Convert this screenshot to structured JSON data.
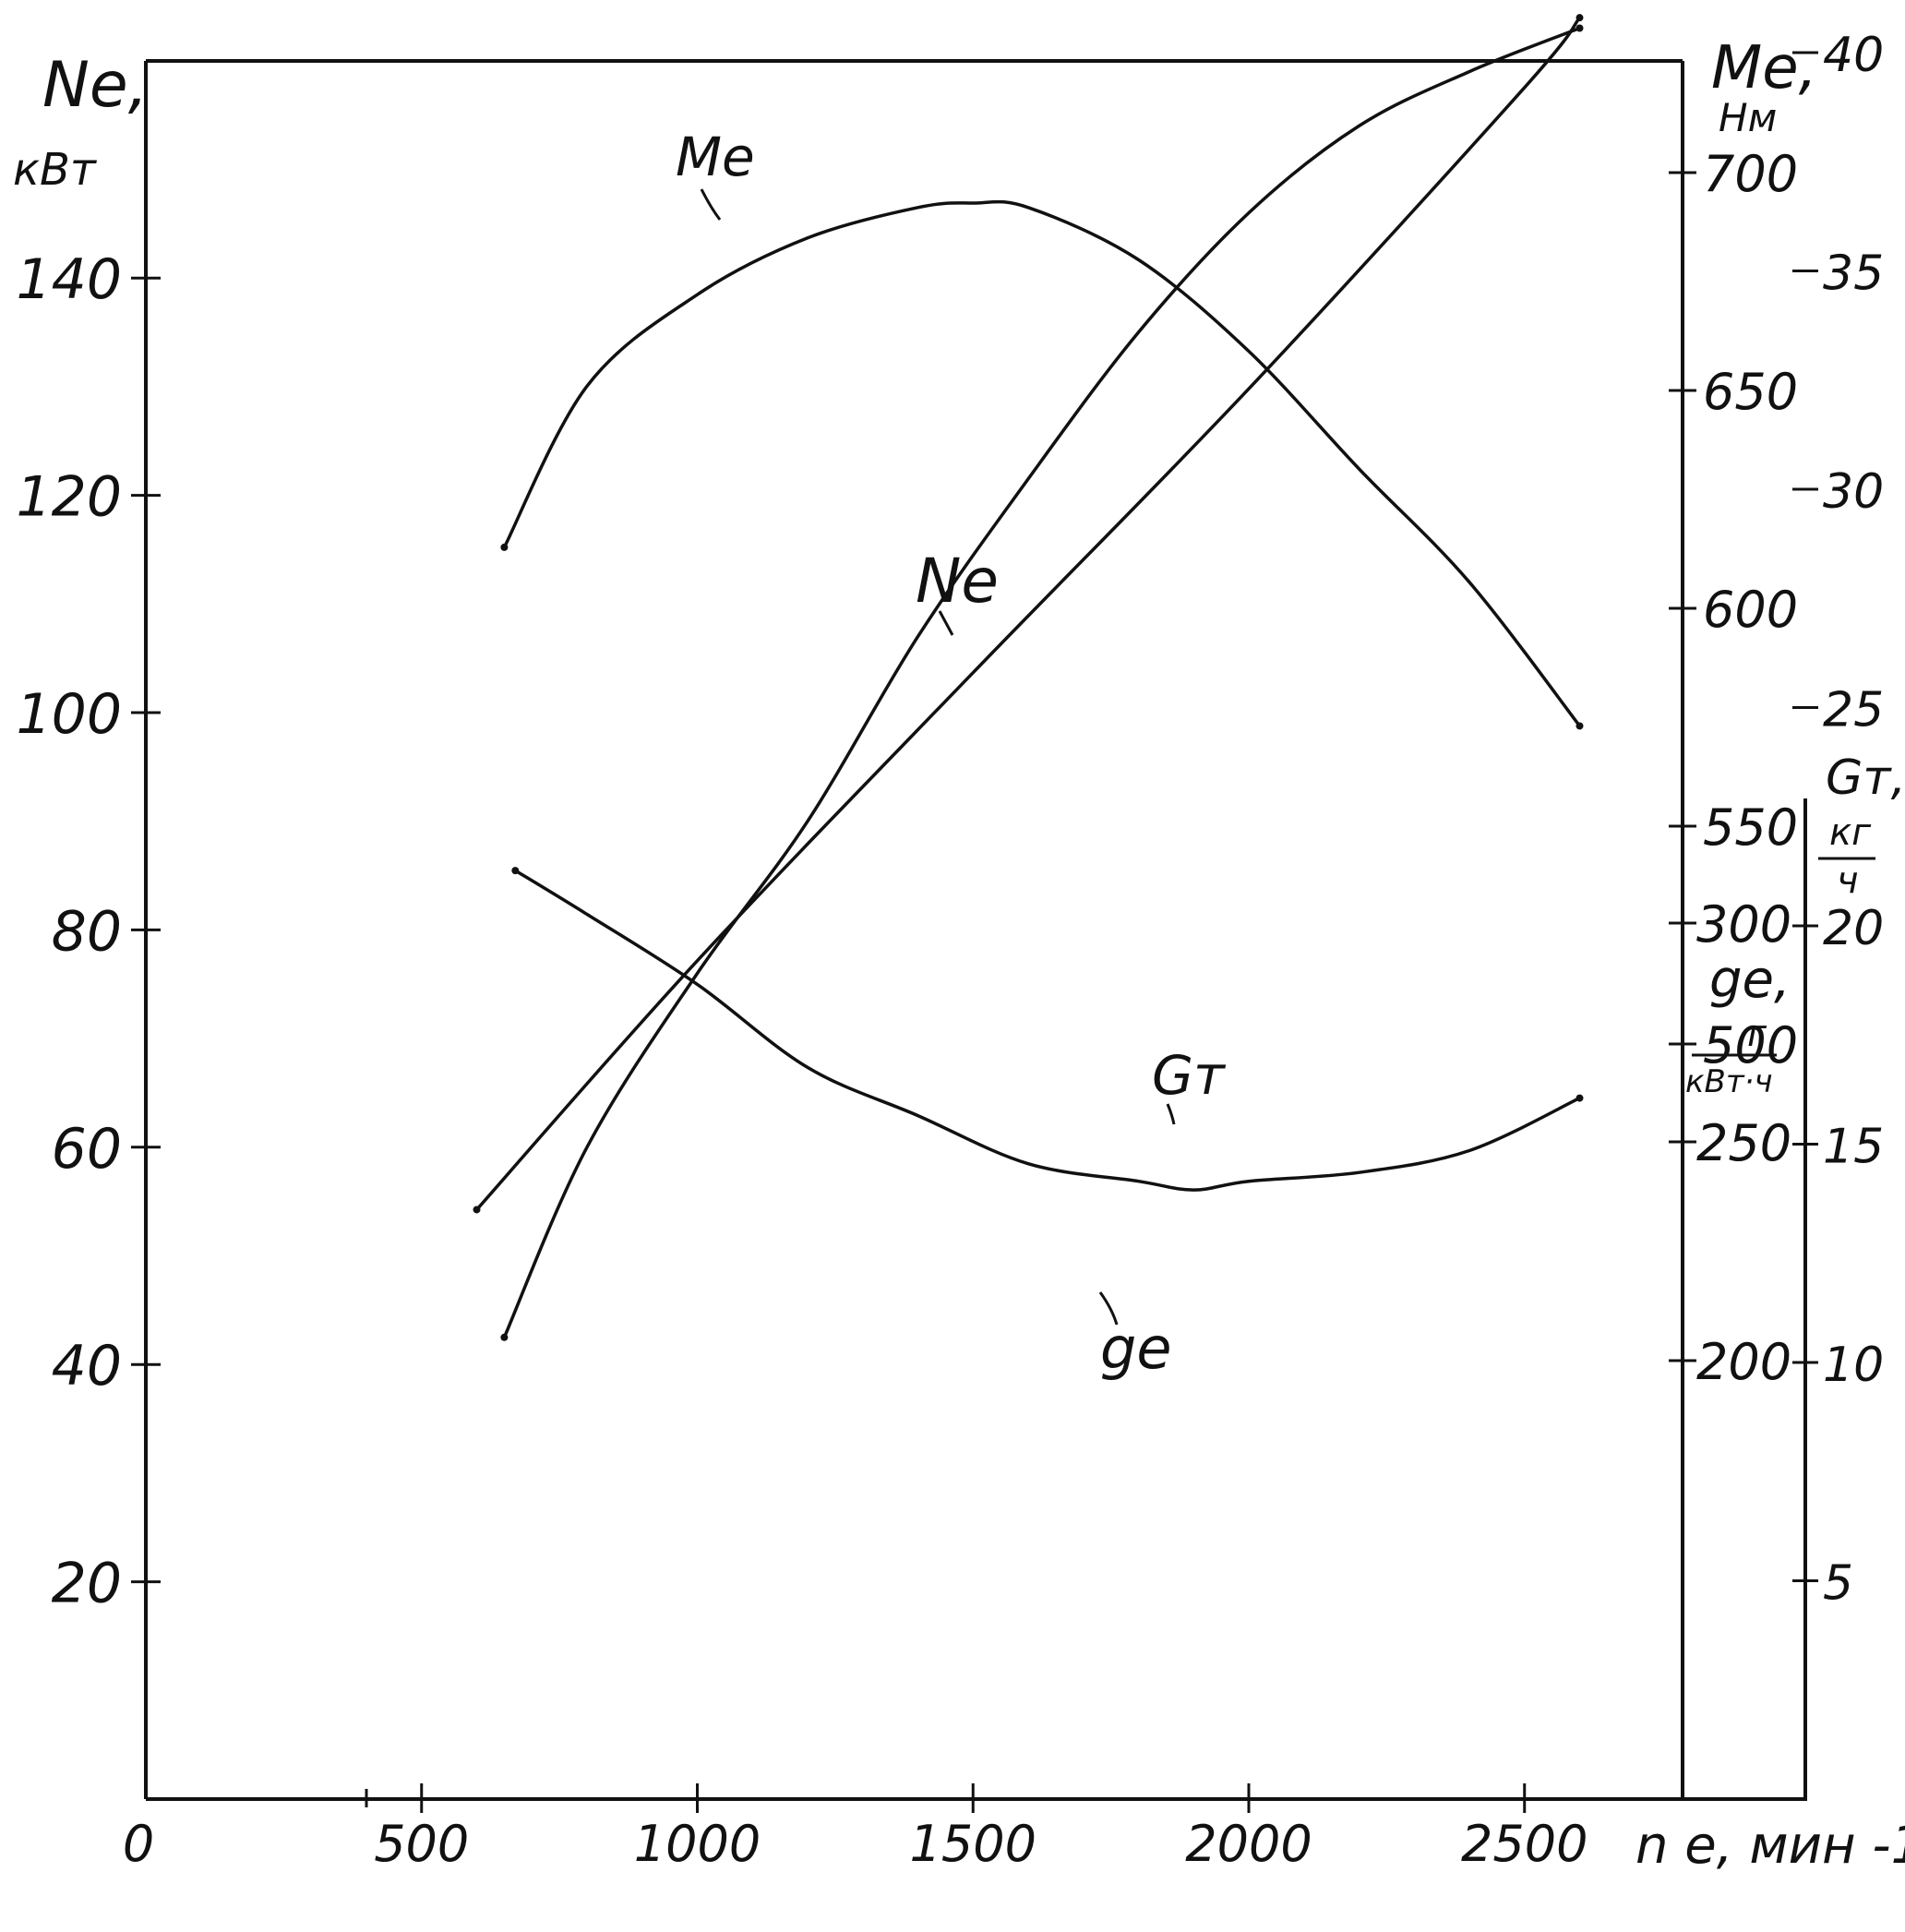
{
  "chart_data": {
    "type": "line",
    "title": "",
    "xlabel": "n e, мин -1",
    "x_ticks": [
      "0",
      "500",
      "1000",
      "1500",
      "2000",
      "2500"
    ],
    "xlim": [
      0,
      2800
    ],
    "axes": {
      "left": {
        "label_main": "Ne,",
        "label_unit": "кВт",
        "ticks": [
          "20",
          "40",
          "60",
          "80",
          "100",
          "120",
          "140"
        ],
        "ylim": [
          0,
          160
        ]
      },
      "right1": {
        "label_main": "Me,",
        "label_unit": "Нм",
        "ticks": [
          "500",
          "550",
          "600",
          "650",
          "700"
        ]
      },
      "right2": {
        "label_main": "ge,",
        "label_num": "г",
        "label_den": "кВт·ч",
        "ticks": [
          "200",
          "250",
          "300"
        ]
      },
      "right3": {
        "label_main": "Gт,",
        "label_num": "кг",
        "label_den": "ч",
        "ticks": [
          "5",
          "10",
          "15",
          "20",
          "25",
          "30",
          "35",
          "40"
        ]
      }
    },
    "series": [
      {
        "name": "Me",
        "axis": "right1",
        "x": [
          650,
          800,
          1000,
          1200,
          1400,
          1500,
          1600,
          1800,
          2000,
          2200,
          2400,
          2600
        ],
        "y": [
          614,
          651,
          672,
          685,
          692,
          693,
          692,
          680,
          659,
          632,
          606,
          573
        ]
      },
      {
        "name": "Ne",
        "axis": "left",
        "x": [
          650,
          800,
          1000,
          1200,
          1400,
          1600,
          1800,
          2000,
          2200,
          2400,
          2600
        ],
        "y": [
          42.5,
          60,
          76,
          90,
          107,
          121.5,
          135,
          146,
          154,
          159,
          163
        ]
      },
      {
        "name": "Gт",
        "axis": "right3",
        "x": [
          600,
          1000,
          1500,
          2000,
          2500,
          2600
        ],
        "y": [
          13.5,
          19.2,
          25.8,
          32.3,
          39.2,
          40.8
        ]
      },
      {
        "name": "ge",
        "axis": "right2",
        "x": [
          670,
          800,
          1000,
          1200,
          1400,
          1600,
          1800,
          1900,
          2000,
          2200,
          2400,
          2600
        ],
        "y": [
          312,
          302,
          286,
          267,
          256,
          245,
          241,
          239,
          241,
          243,
          248,
          260
        ]
      }
    ],
    "grid": false,
    "legend": "none"
  }
}
